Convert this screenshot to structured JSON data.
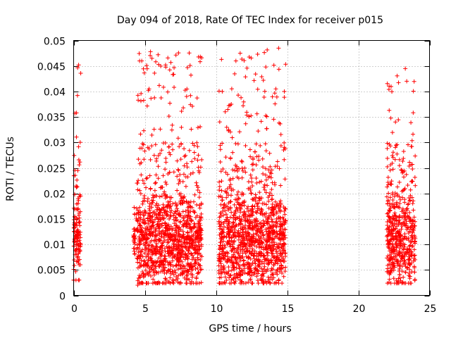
{
  "chart_data": {
    "type": "scatter",
    "title": "Day 094 of 2018, Rate Of TEC Index for receiver p015",
    "xlabel": "GPS time / hours",
    "ylabel": "ROTI / TECUs",
    "xlim": [
      0,
      25
    ],
    "ylim": [
      0,
      0.05
    ],
    "xticks": [
      "0",
      "5",
      "10",
      "15",
      "20",
      "25"
    ],
    "yticks": [
      "0",
      "0.005",
      "0.01",
      "0.015",
      "0.02",
      "0.025",
      "0.03",
      "0.035",
      "0.04",
      "0.045",
      "0.05"
    ],
    "grid": true,
    "marker": "+",
    "series_color": "#ff0000",
    "data_segments": [
      {
        "x_start": 0.0,
        "x_end": 0.5,
        "typical_min": 0.005,
        "typical_max": 0.03,
        "peak": 0.045
      },
      {
        "x_start": 4.2,
        "x_end": 4.3,
        "typical_min": 0.009,
        "typical_max": 0.0175,
        "peak": 0.0175
      },
      {
        "x_start": 4.4,
        "x_end": 9.0,
        "typical_min": 0.004,
        "typical_max": 0.03,
        "peak": 0.0478
      },
      {
        "x_start": 10.2,
        "x_end": 14.9,
        "typical_min": 0.004,
        "typical_max": 0.03,
        "peak": 0.0485
      },
      {
        "x_start": 22.0,
        "x_end": 24.0,
        "typical_min": 0.004,
        "typical_max": 0.03,
        "peak": 0.0445
      }
    ],
    "notable_points": [
      {
        "x": 0.35,
        "y": 0.0452
      },
      {
        "x": 5.4,
        "y": 0.0478
      },
      {
        "x": 5.5,
        "y": 0.0465
      },
      {
        "x": 8.9,
        "y": 0.0468
      },
      {
        "x": 11.7,
        "y": 0.0475
      },
      {
        "x": 11.4,
        "y": 0.046
      },
      {
        "x": 14.4,
        "y": 0.0485
      },
      {
        "x": 13.5,
        "y": 0.0448
      },
      {
        "x": 23.3,
        "y": 0.0445
      },
      {
        "x": 23.4,
        "y": 0.042
      },
      {
        "x": 5.3,
        "y": 0.0405
      },
      {
        "x": 14.8,
        "y": 0.04
      },
      {
        "x": 4.5,
        "y": 0.002
      },
      {
        "x": 6.5,
        "y": 0.003
      },
      {
        "x": 13.8,
        "y": 0.0025
      }
    ]
  }
}
